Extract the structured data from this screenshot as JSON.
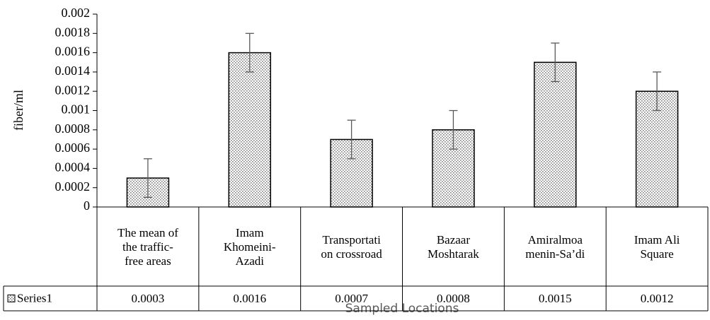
{
  "chart_data": {
    "type": "bar",
    "y_label": "fiber/ml",
    "x_label": "Sampled Locations",
    "categories": [
      "The mean of\nthe traffic-\nfree areas",
      "Imam\nKhomeini-\nAzadi",
      "Transportati\non crossroad",
      "Bazaar\nMoshtarak",
      "Amiralmoa\nmenin-Sa’di",
      "Imam Ali\nSquare"
    ],
    "series": [
      {
        "name": "Series1",
        "color": "#7f7f7f",
        "values": [
          0.0003,
          0.0016,
          0.0007,
          0.0008,
          0.0015,
          0.0012
        ],
        "errors": [
          0.0002,
          0.0002,
          0.0002,
          0.0002,
          0.0002,
          0.0002
        ]
      }
    ],
    "ylim": [
      0,
      0.002
    ],
    "yticks": [
      0,
      0.0002,
      0.0004,
      0.0006,
      0.0008,
      0.001,
      0.0012,
      0.0014,
      0.0016,
      0.0018,
      0.002
    ],
    "data_table": true
  }
}
